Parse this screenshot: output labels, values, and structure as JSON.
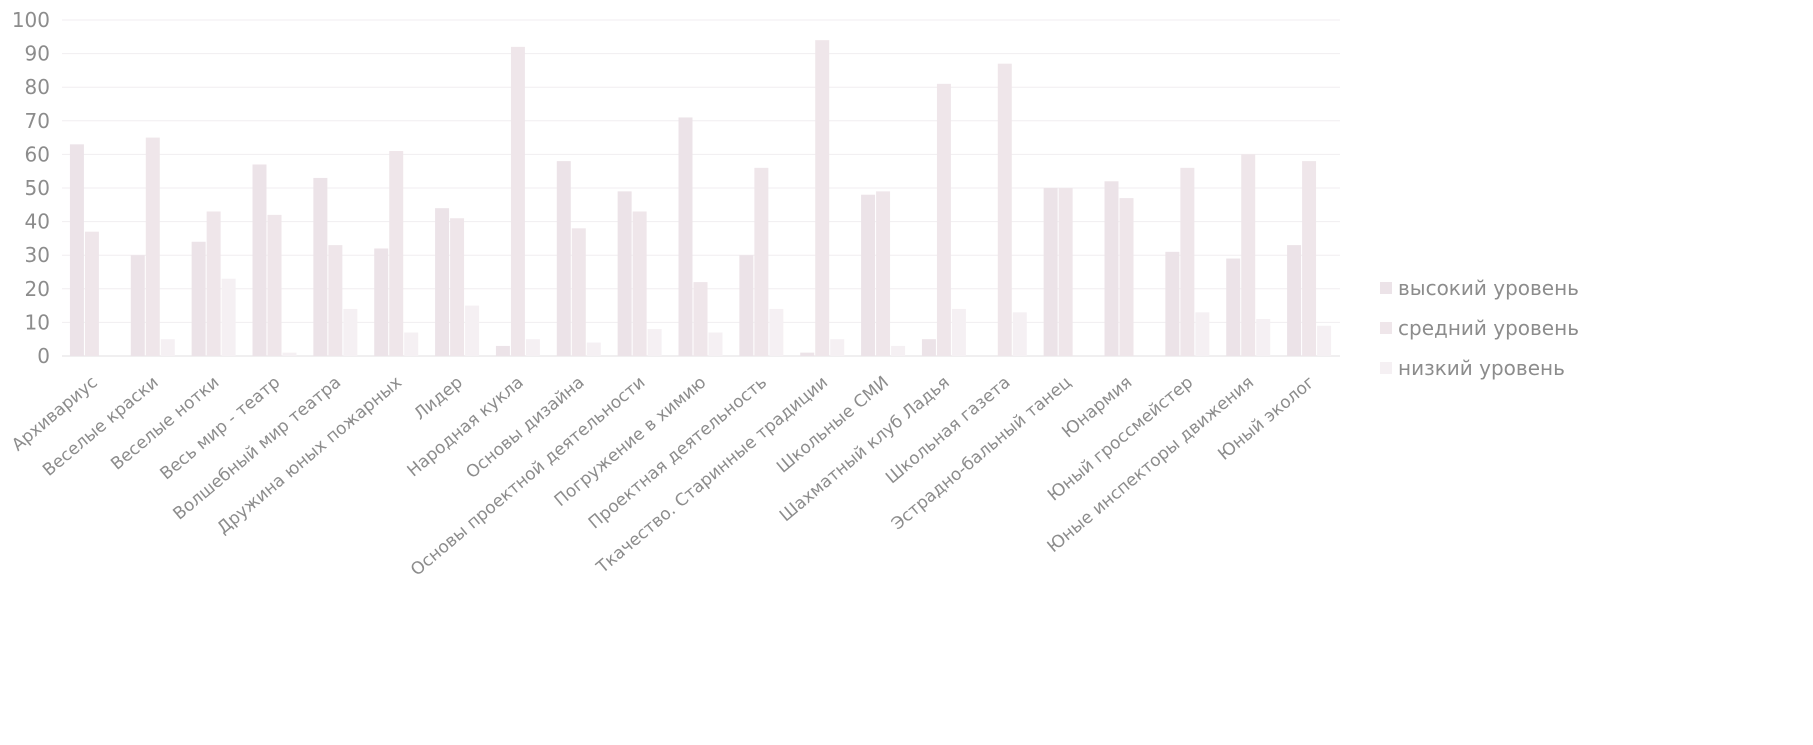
{
  "chart_data": {
    "type": "bar",
    "title": "",
    "xlabel": "",
    "ylabel": "",
    "ylim": [
      0,
      100
    ],
    "yticks": [
      0,
      10,
      20,
      30,
      40,
      50,
      60,
      70,
      80,
      90,
      100
    ],
    "grid": true,
    "legend_position": "right",
    "categories": [
      "Архивариус",
      "Веселые краски",
      "Веселые нотки",
      "Весь мир - театр",
      "Волшебный мир театра",
      "Дружина юных пожарных",
      "Лидер",
      "Народная кукла",
      "Основы дизайна",
      "Основы проектной деятельности",
      "Погружение в химию",
      "Проектная деятельность",
      "Ткачество. Старинные традиции",
      "Школьные СМИ",
      "Шахматный клуб Ладья",
      "Школьная газета",
      "Эстрадно-бальный танец",
      "Юнармия",
      "Юный гроссмейстер",
      "Юные инспекторы движения",
      "Юный эколог"
    ],
    "series": [
      {
        "name": "высокий уровень",
        "color": "#ece3e8",
        "values": [
          63,
          30,
          34,
          57,
          53,
          32,
          44,
          3,
          58,
          49,
          71,
          30,
          1,
          48,
          5,
          0,
          50,
          52,
          31,
          29,
          33
        ]
      },
      {
        "name": "средний уровень",
        "color": "#efe6ea",
        "values": [
          37,
          65,
          43,
          42,
          33,
          61,
          41,
          92,
          38,
          43,
          22,
          56,
          94,
          49,
          81,
          87,
          50,
          47,
          56,
          60,
          58
        ]
      },
      {
        "name": "низкий уровень",
        "color": "#f5f0f3",
        "values": [
          0,
          5,
          23,
          1,
          14,
          7,
          15,
          5,
          4,
          8,
          7,
          14,
          5,
          3,
          14,
          13,
          0,
          0,
          13,
          11,
          9
        ]
      }
    ]
  }
}
